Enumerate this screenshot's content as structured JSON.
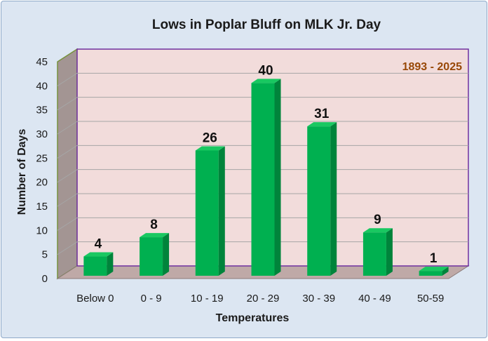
{
  "chart_data": {
    "type": "bar",
    "title": "Lows in Poplar Bluff on MLK Jr. Day",
    "annotation": "1893 - 2025",
    "xlabel": "Temperatures",
    "ylabel": "Number of Days",
    "categories": [
      "Below 0",
      "0 - 9",
      "10 - 19",
      "20 - 29",
      "30 - 39",
      "40 - 49",
      "50-59"
    ],
    "values": [
      4,
      8,
      26,
      40,
      31,
      9,
      1
    ],
    "ylim": [
      0,
      45
    ],
    "yticks": [
      0,
      5,
      10,
      15,
      20,
      25,
      30,
      35,
      40,
      45
    ],
    "grid": true,
    "data_labels": true,
    "colors": {
      "bar_front": "#00b050",
      "bar_side": "#00843b",
      "bar_top": "#19c861",
      "back_wall": "#f2dcdb",
      "side_wall": "#a39593",
      "floor": "#bfa9a7",
      "wall_border": "#7030a0",
      "axis_border": "#76923c",
      "annotation": "#984807",
      "background": "#dce6f2"
    }
  }
}
